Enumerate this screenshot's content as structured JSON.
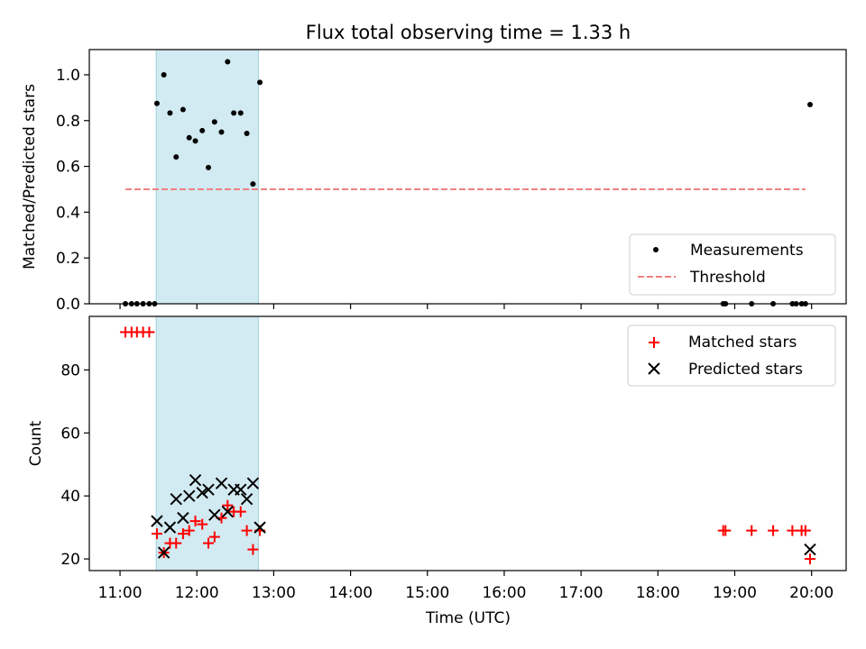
{
  "title": "Flux total observing time = 1.33 h",
  "colors": {
    "shade": "#add8e6",
    "measurement": "#000000",
    "threshold": "#f08080",
    "matched": "#ff0000",
    "predicted": "#000000"
  },
  "chart_data": [
    {
      "type": "scatter",
      "ylabel": "Matched/Predicted stars",
      "xlim": [
        10.6,
        20.45
      ],
      "ylim": [
        0,
        1.11
      ],
      "yticks": [
        0.0,
        0.2,
        0.4,
        0.6,
        0.8,
        1.0
      ],
      "ytick_labels": [
        "0.0",
        "0.2",
        "0.4",
        "0.6",
        "0.8",
        "1.0"
      ],
      "shaded_span": [
        11.47,
        12.8
      ],
      "legend_position": "lower-right",
      "legend": [
        {
          "label": "Measurements",
          "marker": "dot"
        },
        {
          "label": "Threshold",
          "marker": "dash"
        }
      ],
      "threshold": {
        "name": "Threshold",
        "y": 0.5,
        "x_start": 11.07,
        "x_end": 19.92
      },
      "series": [
        {
          "name": "Measurements",
          "points": [
            [
              11.07,
              0
            ],
            [
              11.15,
              0
            ],
            [
              11.22,
              0
            ],
            [
              11.3,
              0
            ],
            [
              11.38,
              0
            ],
            [
              11.45,
              0
            ],
            [
              11.48,
              0.875
            ],
            [
              11.57,
              1.0
            ],
            [
              11.65,
              0.833
            ],
            [
              11.73,
              0.641
            ],
            [
              11.82,
              0.848
            ],
            [
              11.9,
              0.725
            ],
            [
              11.98,
              0.711
            ],
            [
              12.07,
              0.756
            ],
            [
              12.15,
              0.595
            ],
            [
              12.23,
              0.794
            ],
            [
              12.32,
              0.75
            ],
            [
              12.4,
              1.057
            ],
            [
              12.48,
              0.833
            ],
            [
              12.57,
              0.833
            ],
            [
              12.65,
              0.744
            ],
            [
              12.73,
              0.523
            ],
            [
              12.82,
              0.967
            ],
            [
              18.85,
              0
            ],
            [
              18.88,
              0
            ],
            [
              19.22,
              0
            ],
            [
              19.5,
              0
            ],
            [
              19.75,
              0
            ],
            [
              19.8,
              0
            ],
            [
              19.87,
              0
            ],
            [
              19.92,
              0
            ],
            [
              19.98,
              0.87
            ]
          ]
        }
      ]
    },
    {
      "type": "scatter",
      "ylabel": "Count",
      "xlabel": "Time (UTC)",
      "xlim": [
        10.6,
        20.45
      ],
      "ylim": [
        16.3,
        97
      ],
      "yticks": [
        20,
        40,
        60,
        80
      ],
      "ytick_labels": [
        "20",
        "40",
        "60",
        "80"
      ],
      "xticks": [
        11,
        12,
        13,
        14,
        15,
        16,
        17,
        18,
        19,
        20
      ],
      "xtick_labels": [
        "11:00",
        "12:00",
        "13:00",
        "14:00",
        "15:00",
        "16:00",
        "17:00",
        "18:00",
        "19:00",
        "20:00"
      ],
      "shaded_span": [
        11.47,
        12.8
      ],
      "legend_position": "upper-right",
      "legend": [
        {
          "label": "Matched stars",
          "marker": "plus"
        },
        {
          "label": "Predicted stars",
          "marker": "x"
        }
      ],
      "series": [
        {
          "name": "Matched stars",
          "points": [
            [
              11.07,
              92
            ],
            [
              11.15,
              92
            ],
            [
              11.22,
              92
            ],
            [
              11.3,
              92
            ],
            [
              11.38,
              92
            ],
            [
              11.48,
              28
            ],
            [
              11.57,
              22
            ],
            [
              11.65,
              25
            ],
            [
              11.73,
              25
            ],
            [
              11.82,
              28
            ],
            [
              11.9,
              29
            ],
            [
              11.98,
              32
            ],
            [
              12.07,
              31
            ],
            [
              12.15,
              25
            ],
            [
              12.23,
              27
            ],
            [
              12.32,
              33
            ],
            [
              12.4,
              37
            ],
            [
              12.48,
              35
            ],
            [
              12.57,
              35
            ],
            [
              12.65,
              29
            ],
            [
              12.73,
              23
            ],
            [
              12.82,
              29
            ],
            [
              18.85,
              29
            ],
            [
              18.88,
              29
            ],
            [
              19.22,
              29
            ],
            [
              19.5,
              29
            ],
            [
              19.75,
              29
            ],
            [
              19.87,
              29
            ],
            [
              19.92,
              29
            ],
            [
              19.98,
              20
            ]
          ]
        },
        {
          "name": "Predicted stars",
          "points": [
            [
              11.48,
              32
            ],
            [
              11.57,
              22
            ],
            [
              11.65,
              30
            ],
            [
              11.73,
              39
            ],
            [
              11.82,
              33
            ],
            [
              11.9,
              40
            ],
            [
              11.98,
              45
            ],
            [
              12.07,
              41
            ],
            [
              12.15,
              42
            ],
            [
              12.23,
              34
            ],
            [
              12.32,
              44
            ],
            [
              12.4,
              35
            ],
            [
              12.48,
              42
            ],
            [
              12.57,
              42
            ],
            [
              12.65,
              39
            ],
            [
              12.73,
              44
            ],
            [
              12.82,
              30
            ],
            [
              19.98,
              23
            ]
          ]
        }
      ]
    }
  ]
}
